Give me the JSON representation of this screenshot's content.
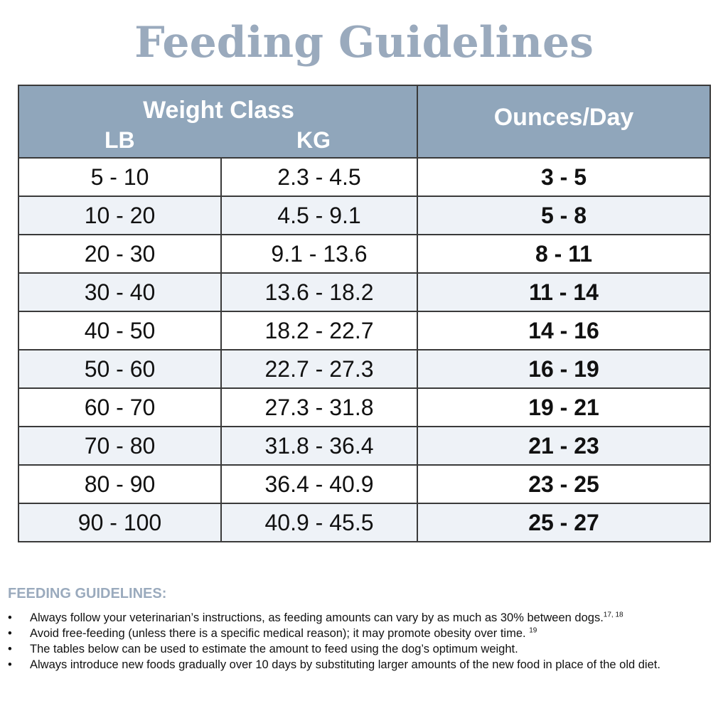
{
  "title": "Feeding Guidelines",
  "table": {
    "header": {
      "weight_class": "Weight Class",
      "lb": "LB",
      "kg": "KG",
      "ounces_per_day": "Ounces/Day"
    },
    "rows": [
      {
        "lb": "5 - 10",
        "kg": "2.3 - 4.5",
        "oz": "3 - 5"
      },
      {
        "lb": "10 - 20",
        "kg": "4.5 - 9.1",
        "oz": "5 - 8"
      },
      {
        "lb": "20 - 30",
        "kg": "9.1 - 13.6",
        "oz": "8 - 11"
      },
      {
        "lb": "30 - 40",
        "kg": "13.6 - 18.2",
        "oz": "11 - 14"
      },
      {
        "lb": "40 - 50",
        "kg": "18.2 - 22.7",
        "oz": "14 - 16"
      },
      {
        "lb": "50 - 60",
        "kg": "22.7 - 27.3",
        "oz": "16 - 19"
      },
      {
        "lb": "60 - 70",
        "kg": "27.3 - 31.8",
        "oz": "19 - 21"
      },
      {
        "lb": "70 - 80",
        "kg": "31.8 - 36.4",
        "oz": "21 - 23"
      },
      {
        "lb": "80 - 90",
        "kg": "36.4 - 40.9",
        "oz": "23 - 25"
      },
      {
        "lb": "90 - 100",
        "kg": "40.9 - 45.5",
        "oz": "25 - 27"
      }
    ]
  },
  "notes": {
    "heading": "FEEDING GUIDELINES:",
    "bullet_glyph": "•",
    "items": [
      {
        "text": "Always follow your veterinarian’s instructions, as feeding amounts can vary by as much as 30% between dogs.",
        "sup": "17, 18"
      },
      {
        "text": "Avoid free-feeding (unless there is a specific medical reason); it may promote obesity over time. ",
        "sup": "19"
      },
      {
        "text": "The tables below can be used to estimate the amount to feed using the dog’s optimum weight.",
        "sup": ""
      },
      {
        "text": "Always introduce new foods gradually over 10 days by substituting larger amounts of the new food in place of the old diet.",
        "sup": ""
      }
    ]
  },
  "colors": {
    "title": "#9aaabd",
    "header_bg": "#90a6bb",
    "header_text": "#ffffff",
    "alt_row_bg": "#eef2f7",
    "border": "#3a3a3a"
  }
}
